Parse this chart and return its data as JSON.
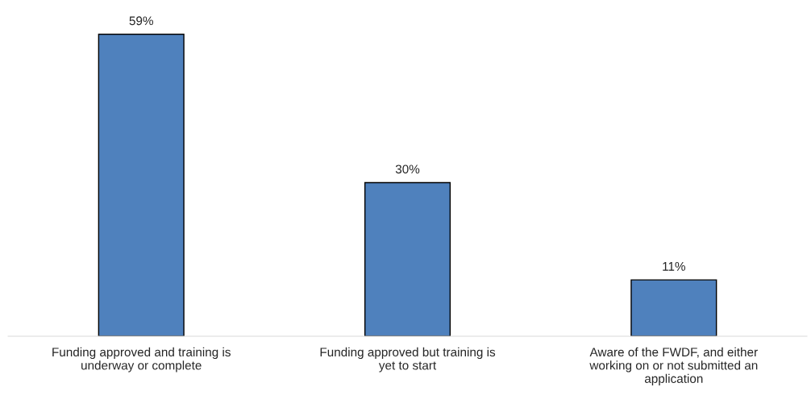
{
  "chart_data": {
    "type": "bar",
    "categories": [
      "Funding approved and training is\nunderway or complete",
      "Funding approved but training is\nyet to start",
      "Aware of the FWDF, and either\nworking on or not submitted an\napplication"
    ],
    "values": [
      59,
      30,
      11
    ],
    "value_labels": [
      "59%",
      "30%",
      "11%"
    ],
    "color": "#4f81bd",
    "tick_labels": "x",
    "grid": false
  }
}
